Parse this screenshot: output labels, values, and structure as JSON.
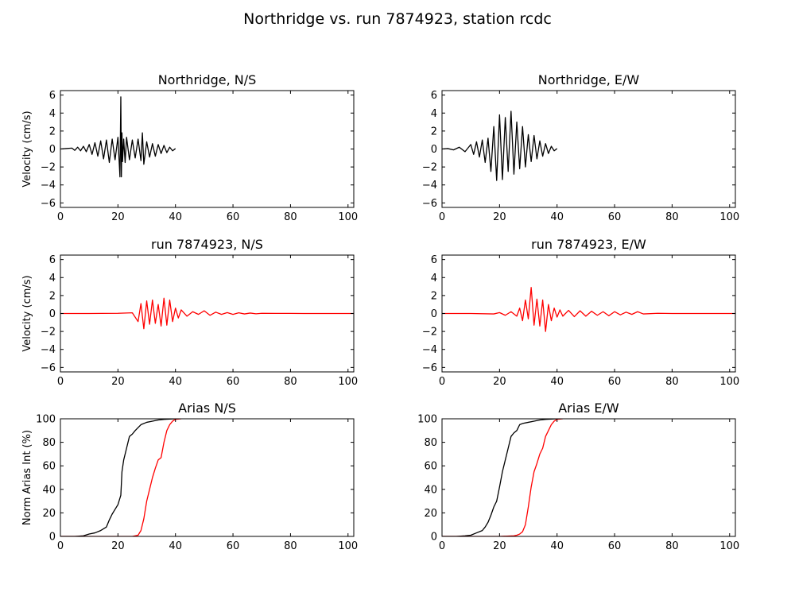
{
  "figure": {
    "title": "Northridge vs. run 7874923, station rcdc"
  },
  "colors": {
    "recorded": "#000000",
    "simulated": "#ff0000"
  },
  "chart_data": [
    {
      "type": "line",
      "title": "Northridge, N/S",
      "xlabel": "",
      "ylabel": "Velocity (cm/s)",
      "xlim": [
        0,
        102
      ],
      "ylim": [
        -6.5,
        6.5
      ],
      "xticks": [
        0,
        20,
        40,
        60,
        80,
        100
      ],
      "yticks": [
        -6,
        -4,
        -2,
        0,
        2,
        4,
        6
      ],
      "series": [
        {
          "color": "#000000",
          "x": [
            0,
            2,
            4,
            5,
            6,
            7,
            8,
            9,
            10,
            11,
            12,
            13,
            14,
            15,
            16,
            17,
            18,
            19,
            20,
            20.7,
            21,
            21.2,
            21.4,
            21.6,
            22,
            22.5,
            23,
            24,
            25,
            26,
            27,
            28,
            28.5,
            29,
            30,
            31,
            32,
            33,
            34,
            35,
            36,
            37,
            38,
            39,
            40
          ],
          "y": [
            0,
            0.05,
            0.1,
            -0.15,
            0.2,
            -0.2,
            0.3,
            -0.3,
            0.5,
            -0.6,
            0.7,
            -0.8,
            0.9,
            -1.1,
            1.0,
            -1.5,
            1.1,
            -1.2,
            1.3,
            -3.1,
            5.8,
            -3.1,
            1.8,
            -1.4,
            1.1,
            -1.5,
            1.3,
            -1.2,
            1.0,
            -1.0,
            1.1,
            -1.3,
            1.8,
            -1.7,
            0.8,
            -0.9,
            0.6,
            -0.8,
            0.5,
            -0.5,
            0.4,
            -0.4,
            0.2,
            -0.2,
            0.05
          ]
        }
      ]
    },
    {
      "type": "line",
      "title": "Northridge, E/W",
      "xlabel": "",
      "ylabel": "",
      "xlim": [
        0,
        102
      ],
      "ylim": [
        -6.5,
        6.5
      ],
      "xticks": [
        0,
        20,
        40,
        60,
        80,
        100
      ],
      "yticks": [
        -6,
        -4,
        -2,
        0,
        2,
        4,
        6
      ],
      "series": [
        {
          "color": "#000000",
          "x": [
            0,
            2,
            4,
            6,
            8,
            10,
            11,
            12,
            13,
            14,
            15,
            16,
            17,
            18,
            19,
            20,
            21,
            22,
            23,
            24,
            25,
            26,
            27,
            28,
            29,
            30,
            31,
            32,
            33,
            34,
            35,
            36,
            37,
            38,
            39,
            40
          ],
          "y": [
            0,
            0.05,
            -0.1,
            0.2,
            -0.3,
            0.5,
            -0.6,
            0.8,
            -0.9,
            1.0,
            -1.5,
            1.2,
            -2.5,
            2.5,
            -3.5,
            3.8,
            -3.4,
            3.5,
            -2.5,
            4.2,
            -2.8,
            3.0,
            -2.2,
            2.5,
            -2.0,
            1.6,
            -1.4,
            1.5,
            -1.1,
            0.9,
            -0.8,
            0.6,
            -0.5,
            0.3,
            -0.2,
            0.05
          ]
        }
      ]
    },
    {
      "type": "line",
      "title": "run 7874923, N/S",
      "xlabel": "",
      "ylabel": "Velocity (cm/s)",
      "xlim": [
        0,
        102
      ],
      "ylim": [
        -6.5,
        6.5
      ],
      "xticks": [
        0,
        20,
        40,
        60,
        80,
        100
      ],
      "yticks": [
        -6,
        -4,
        -2,
        0,
        2,
        4,
        6
      ],
      "series": [
        {
          "color": "#ff0000",
          "x": [
            0,
            10,
            20,
            25,
            27,
            28,
            29,
            30,
            31,
            32,
            33,
            34,
            35,
            36,
            37,
            38,
            39,
            40,
            41,
            42,
            44,
            46,
            48,
            50,
            52,
            54,
            56,
            58,
            60,
            62,
            64,
            66,
            68,
            70,
            75,
            80,
            85,
            90,
            95,
            102
          ],
          "y": [
            0,
            0,
            0.02,
            0.08,
            -0.9,
            1.1,
            -1.7,
            1.4,
            -1.2,
            1.5,
            -1.1,
            1.0,
            -1.4,
            1.7,
            -1.3,
            1.5,
            -0.9,
            0.6,
            -0.5,
            0.4,
            -0.3,
            0.2,
            -0.1,
            0.3,
            -0.2,
            0.15,
            -0.1,
            0.1,
            -0.1,
            0.08,
            -0.05,
            0.05,
            -0.03,
            0.02,
            0.01,
            0.01,
            0,
            0,
            0,
            0
          ]
        }
      ]
    },
    {
      "type": "line",
      "title": "run 7874923, E/W",
      "xlabel": "",
      "ylabel": "",
      "xlim": [
        0,
        102
      ],
      "ylim": [
        -6.5,
        6.5
      ],
      "xticks": [
        0,
        20,
        40,
        60,
        80,
        100
      ],
      "yticks": [
        -6,
        -4,
        -2,
        0,
        2,
        4,
        6
      ],
      "series": [
        {
          "color": "#ff0000",
          "x": [
            0,
            10,
            18,
            20,
            22,
            24,
            26,
            27,
            28,
            29,
            30,
            31,
            32,
            33,
            34,
            35,
            36,
            37,
            38,
            39,
            40,
            41,
            42,
            44,
            46,
            48,
            50,
            52,
            54,
            56,
            58,
            60,
            62,
            64,
            66,
            68,
            70,
            75,
            80,
            90,
            102
          ],
          "y": [
            0,
            0,
            -0.05,
            0.1,
            -0.2,
            0.2,
            -0.3,
            0.6,
            -0.8,
            1.5,
            -0.6,
            2.9,
            -1.3,
            1.6,
            -1.4,
            1.5,
            -2.0,
            1.0,
            -0.8,
            0.6,
            -0.4,
            0.4,
            -0.3,
            0.35,
            -0.35,
            0.3,
            -0.3,
            0.25,
            -0.2,
            0.2,
            -0.25,
            0.2,
            -0.15,
            0.15,
            -0.1,
            0.2,
            -0.05,
            0.02,
            0,
            0,
            0
          ]
        }
      ]
    },
    {
      "type": "line",
      "title": "Arias N/S",
      "xlabel": "",
      "ylabel": "Norm Arias Int (%)",
      "xlim": [
        0,
        102
      ],
      "ylim": [
        0,
        100
      ],
      "xticks": [
        0,
        20,
        40,
        60,
        80,
        100
      ],
      "yticks": [
        0,
        20,
        40,
        60,
        80,
        100
      ],
      "series": [
        {
          "color": "#000000",
          "x": [
            0,
            5,
            8,
            10,
            12,
            14,
            16,
            17,
            18,
            19,
            20,
            21,
            21.4,
            22,
            23,
            24,
            25,
            26,
            28,
            30,
            32,
            34,
            36,
            40
          ],
          "y": [
            0,
            0,
            0.5,
            2,
            3,
            5,
            8,
            14,
            19,
            23,
            27,
            35,
            55,
            65,
            75,
            85,
            87,
            90,
            95,
            97,
            98,
            99,
            99.5,
            100
          ]
        },
        {
          "color": "#ff0000",
          "x": [
            0,
            20,
            25,
            27,
            28,
            29,
            30,
            31,
            32,
            33,
            34,
            35,
            36,
            37,
            38,
            39,
            40,
            42
          ],
          "y": [
            0,
            0,
            0,
            1,
            5,
            15,
            30,
            40,
            50,
            58,
            65,
            67,
            80,
            90,
            95,
            98,
            99.5,
            100
          ]
        }
      ]
    },
    {
      "type": "line",
      "title": "Arias E/W",
      "xlabel": "",
      "ylabel": "",
      "xlim": [
        0,
        102
      ],
      "ylim": [
        0,
        100
      ],
      "xticks": [
        0,
        20,
        40,
        60,
        80,
        100
      ],
      "yticks": [
        0,
        20,
        40,
        60,
        80,
        100
      ],
      "series": [
        {
          "color": "#000000",
          "x": [
            0,
            5,
            8,
            10,
            12,
            14,
            15,
            16,
            17,
            18,
            19,
            20,
            21,
            22,
            23,
            24,
            25,
            26,
            27,
            28,
            30,
            32,
            34,
            36,
            38,
            40
          ],
          "y": [
            0,
            0,
            0.5,
            1,
            3,
            5,
            8,
            12,
            18,
            25,
            30,
            42,
            55,
            65,
            75,
            85,
            88,
            90,
            95,
            96,
            97,
            98,
            99,
            99.5,
            99.8,
            100
          ]
        },
        {
          "color": "#ff0000",
          "x": [
            0,
            20,
            25,
            26,
            27,
            28,
            29,
            30,
            31,
            32,
            33,
            34,
            35,
            36,
            37,
            38,
            39,
            40,
            42
          ],
          "y": [
            0,
            0,
            0.5,
            1,
            2,
            4,
            10,
            25,
            42,
            55,
            62,
            70,
            75,
            85,
            90,
            95,
            98,
            99.5,
            100
          ]
        }
      ]
    }
  ]
}
